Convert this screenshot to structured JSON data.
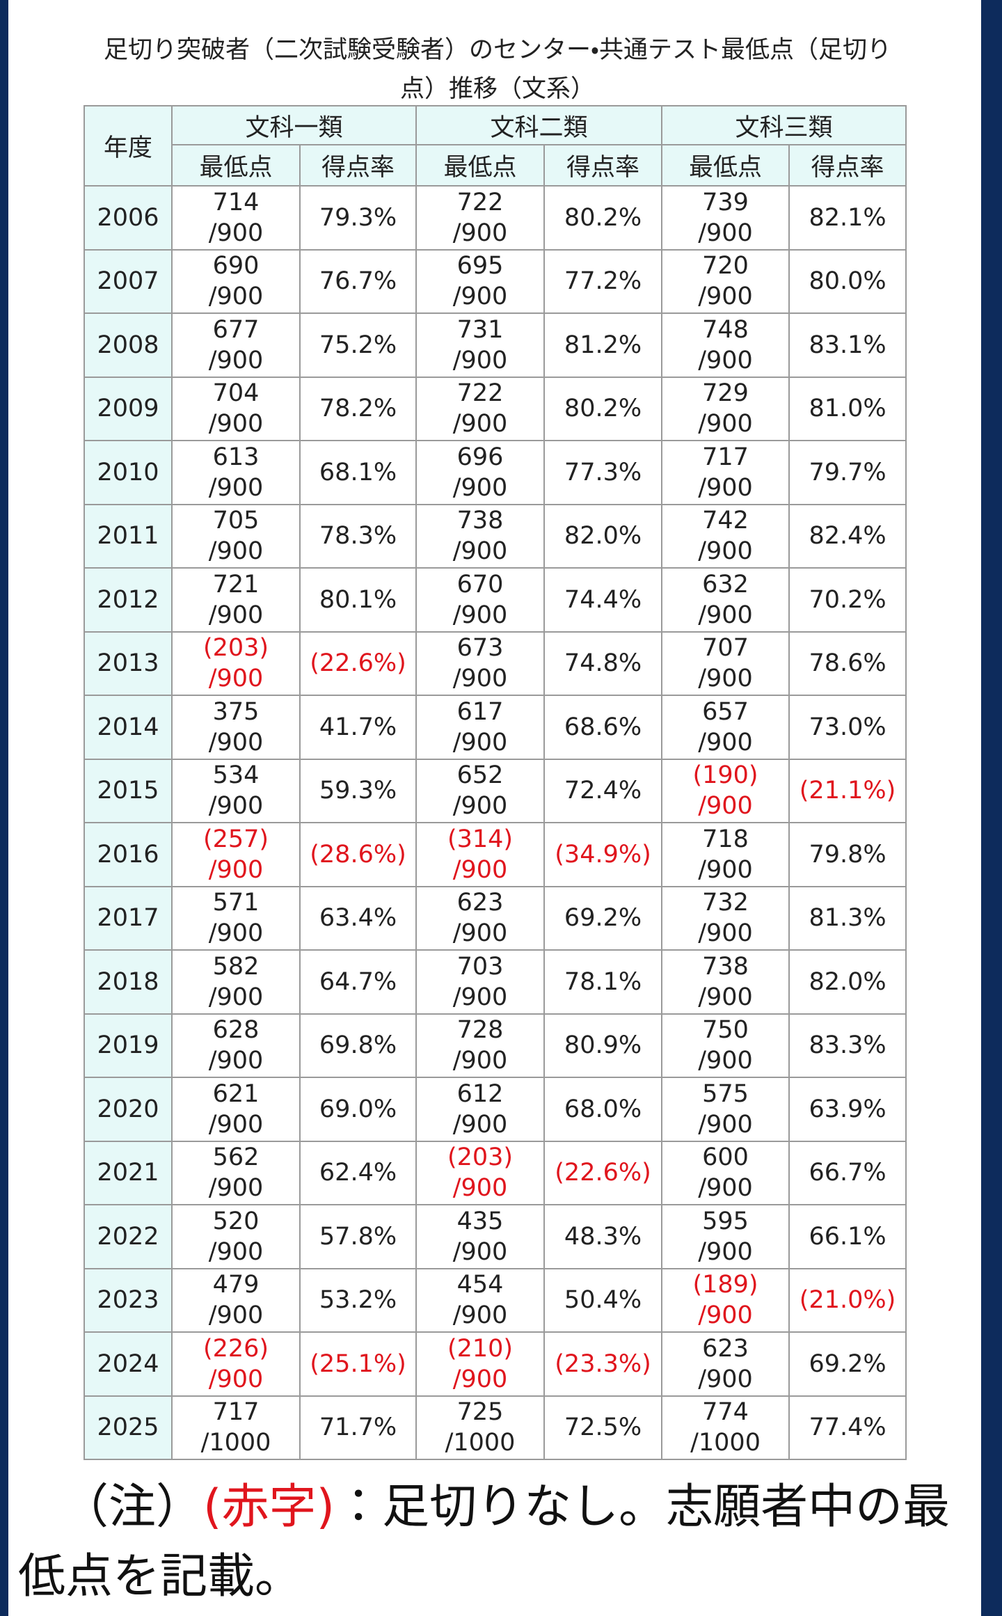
{
  "title": "足切り突破者（二次試験受験者）のセンター・共通テスト最低点（足切り点）推移（文系）",
  "table": {
    "header": {
      "year": "年度",
      "groups": [
        "文科一類",
        "文科二類",
        "文科三類"
      ],
      "sub": [
        "最低点",
        "得点率",
        "最低点",
        "得点率",
        "最低点",
        "得点率"
      ]
    },
    "rows": [
      {
        "year": "2006",
        "cells": [
          {
            "score": "714",
            "total": "/900",
            "rate": "79.3%"
          },
          {
            "score": "722",
            "total": "/900",
            "rate": "80.2%"
          },
          {
            "score": "739",
            "total": "/900",
            "rate": "82.1%"
          }
        ]
      },
      {
        "year": "2007",
        "cells": [
          {
            "score": "690",
            "total": "/900",
            "rate": "76.7%"
          },
          {
            "score": "695",
            "total": "/900",
            "rate": "77.2%"
          },
          {
            "score": "720",
            "total": "/900",
            "rate": "80.0%"
          }
        ]
      },
      {
        "year": "2008",
        "cells": [
          {
            "score": "677",
            "total": "/900",
            "rate": "75.2%"
          },
          {
            "score": "731",
            "total": "/900",
            "rate": "81.2%"
          },
          {
            "score": "748",
            "total": "/900",
            "rate": "83.1%"
          }
        ]
      },
      {
        "year": "2009",
        "cells": [
          {
            "score": "704",
            "total": "/900",
            "rate": "78.2%"
          },
          {
            "score": "722",
            "total": "/900",
            "rate": "80.2%"
          },
          {
            "score": "729",
            "total": "/900",
            "rate": "81.0%"
          }
        ]
      },
      {
        "year": "2010",
        "cells": [
          {
            "score": "613",
            "total": "/900",
            "rate": "68.1%"
          },
          {
            "score": "696",
            "total": "/900",
            "rate": "77.3%"
          },
          {
            "score": "717",
            "total": "/900",
            "rate": "79.7%"
          }
        ]
      },
      {
        "year": "2011",
        "cells": [
          {
            "score": "705",
            "total": "/900",
            "rate": "78.3%"
          },
          {
            "score": "738",
            "total": "/900",
            "rate": "82.0%"
          },
          {
            "score": "742",
            "total": "/900",
            "rate": "82.4%"
          }
        ]
      },
      {
        "year": "2012",
        "cells": [
          {
            "score": "721",
            "total": "/900",
            "rate": "80.1%"
          },
          {
            "score": "670",
            "total": "/900",
            "rate": "74.4%"
          },
          {
            "score": "632",
            "total": "/900",
            "rate": "70.2%"
          }
        ]
      },
      {
        "year": "2013",
        "cells": [
          {
            "score": "(203)",
            "total": "/900",
            "rate": "(22.6%)",
            "red": true
          },
          {
            "score": "673",
            "total": "/900",
            "rate": "74.8%"
          },
          {
            "score": "707",
            "total": "/900",
            "rate": "78.6%"
          }
        ]
      },
      {
        "year": "2014",
        "cells": [
          {
            "score": "375",
            "total": "/900",
            "rate": "41.7%"
          },
          {
            "score": "617",
            "total": "/900",
            "rate": "68.6%"
          },
          {
            "score": "657",
            "total": "/900",
            "rate": "73.0%"
          }
        ]
      },
      {
        "year": "2015",
        "cells": [
          {
            "score": "534",
            "total": "/900",
            "rate": "59.3%"
          },
          {
            "score": "652",
            "total": "/900",
            "rate": "72.4%"
          },
          {
            "score": "(190)",
            "total": "/900",
            "rate": "(21.1%)",
            "red": true
          }
        ]
      },
      {
        "year": "2016",
        "cells": [
          {
            "score": "(257)",
            "total": "/900",
            "rate": "(28.6%)",
            "red": true
          },
          {
            "score": "(314)",
            "total": "/900",
            "rate": "(34.9%)",
            "red": true
          },
          {
            "score": "718",
            "total": "/900",
            "rate": "79.8%"
          }
        ]
      },
      {
        "year": "2017",
        "cells": [
          {
            "score": "571",
            "total": "/900",
            "rate": "63.4%"
          },
          {
            "score": "623",
            "total": "/900",
            "rate": "69.2%"
          },
          {
            "score": "732",
            "total": "/900",
            "rate": "81.3%"
          }
        ]
      },
      {
        "year": "2018",
        "cells": [
          {
            "score": "582",
            "total": "/900",
            "rate": "64.7%"
          },
          {
            "score": "703",
            "total": "/900",
            "rate": "78.1%"
          },
          {
            "score": "738",
            "total": "/900",
            "rate": "82.0%"
          }
        ]
      },
      {
        "year": "2019",
        "cells": [
          {
            "score": "628",
            "total": "/900",
            "rate": "69.8%"
          },
          {
            "score": "728",
            "total": "/900",
            "rate": "80.9%"
          },
          {
            "score": "750",
            "total": "/900",
            "rate": "83.3%"
          }
        ]
      },
      {
        "year": "2020",
        "cells": [
          {
            "score": "621",
            "total": "/900",
            "rate": "69.0%"
          },
          {
            "score": "612",
            "total": "/900",
            "rate": "68.0%"
          },
          {
            "score": "575",
            "total": "/900",
            "rate": "63.9%"
          }
        ]
      },
      {
        "year": "2021",
        "cells": [
          {
            "score": "562",
            "total": "/900",
            "rate": "62.4%"
          },
          {
            "score": "(203)",
            "total": "/900",
            "rate": "(22.6%)",
            "red": true
          },
          {
            "score": "600",
            "total": "/900",
            "rate": "66.7%"
          }
        ]
      },
      {
        "year": "2022",
        "cells": [
          {
            "score": "520",
            "total": "/900",
            "rate": "57.8%"
          },
          {
            "score": "435",
            "total": "/900",
            "rate": "48.3%"
          },
          {
            "score": "595",
            "total": "/900",
            "rate": "66.1%"
          }
        ]
      },
      {
        "year": "2023",
        "cells": [
          {
            "score": "479",
            "total": "/900",
            "rate": "53.2%"
          },
          {
            "score": "454",
            "total": "/900",
            "rate": "50.4%"
          },
          {
            "score": "(189)",
            "total": "/900",
            "rate": "(21.0%)",
            "red": true
          }
        ]
      },
      {
        "year": "2024",
        "cells": [
          {
            "score": "(226)",
            "total": "/900",
            "rate": "(25.1%)",
            "red": true
          },
          {
            "score": "(210)",
            "total": "/900",
            "rate": "(23.3%)",
            "red": true
          },
          {
            "score": "623",
            "total": "/900",
            "rate": "69.2%"
          }
        ]
      },
      {
        "year": "2025",
        "cells": [
          {
            "score": "717",
            "total": "/1000",
            "rate": "71.7%"
          },
          {
            "score": "725",
            "total": "/1000",
            "rate": "72.5%"
          },
          {
            "score": "774",
            "total": "/1000",
            "rate": "77.4%"
          }
        ]
      }
    ]
  },
  "note": {
    "label": "（注）",
    "red_text": "(赤字)",
    "text": "：足切りなし。志願者中の最低点を記載。"
  }
}
